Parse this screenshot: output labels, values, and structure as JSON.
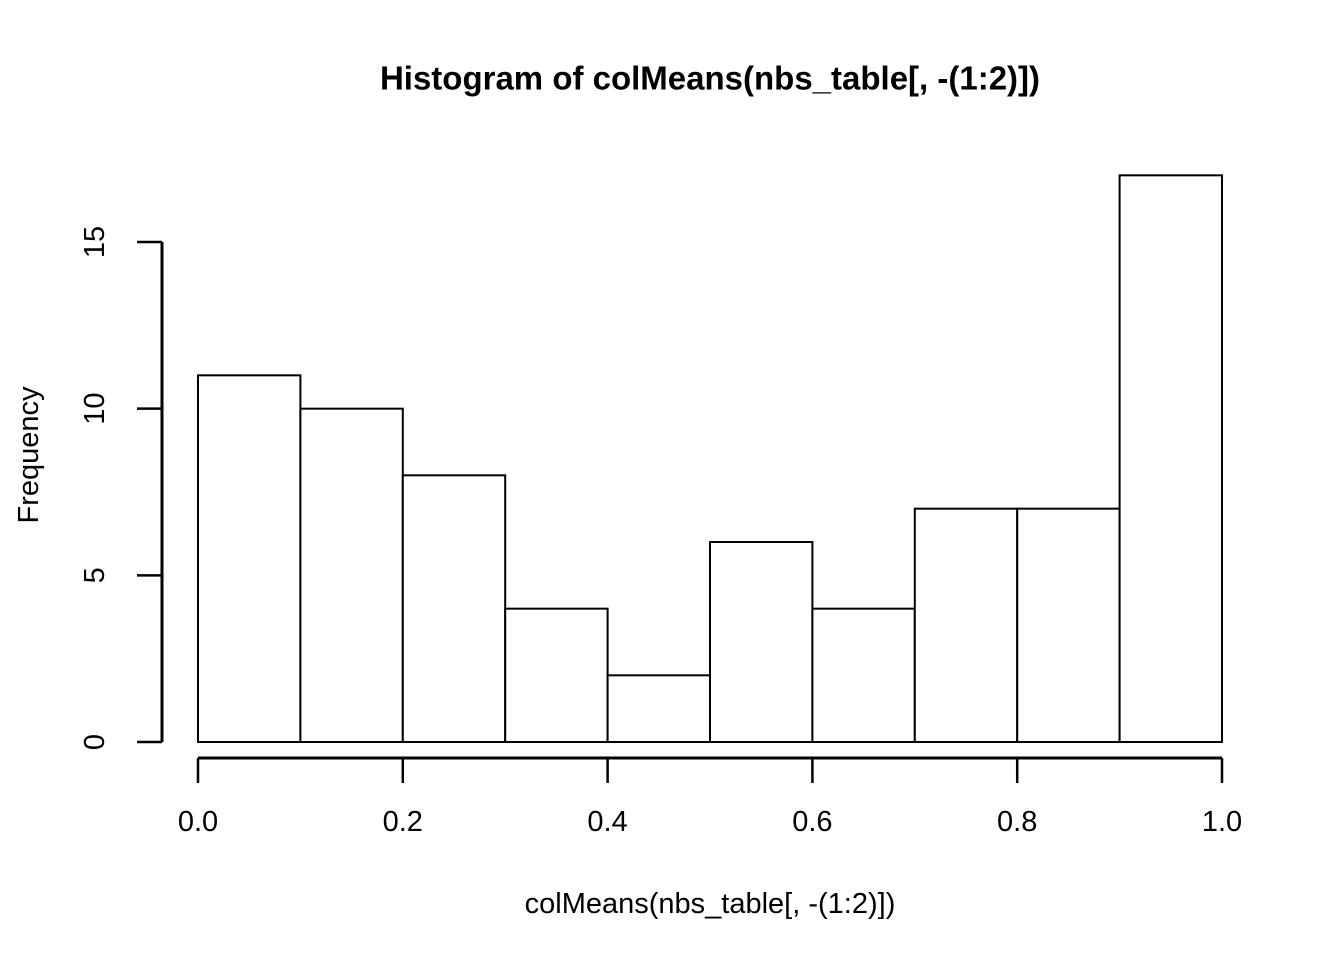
{
  "figure": {
    "background": "#ffffff"
  },
  "chart_data": {
    "type": "bar",
    "subtype": "histogram",
    "title": "Histogram of colMeans(nbs_table[, -(1:2)])",
    "xlabel": "colMeans(nbs_table[, -(1:2)])",
    "ylabel": "Frequency",
    "bin_edges": [
      0.0,
      0.1,
      0.2,
      0.3,
      0.4,
      0.5,
      0.6,
      0.7,
      0.8,
      0.9,
      1.0
    ],
    "counts": [
      11,
      10,
      8,
      4,
      2,
      6,
      4,
      7,
      7,
      17
    ],
    "xlim": [
      0.0,
      1.0
    ],
    "ylim": [
      0,
      15
    ],
    "x_tick_values": [
      0.0,
      0.2,
      0.4,
      0.6,
      0.8,
      1.0
    ],
    "x_tick_labels": [
      "0.0",
      "0.2",
      "0.4",
      "0.6",
      "0.8",
      "1.0"
    ],
    "y_tick_values": [
      0,
      5,
      10,
      15
    ],
    "y_tick_labels": [
      "0",
      "5",
      "10",
      "15"
    ],
    "grid": false,
    "legend": "none",
    "colors": {
      "bar_fill": "#ffffff",
      "bar_border": "#000000",
      "axis": "#000000",
      "text": "#000000",
      "background": "#ffffff"
    }
  }
}
